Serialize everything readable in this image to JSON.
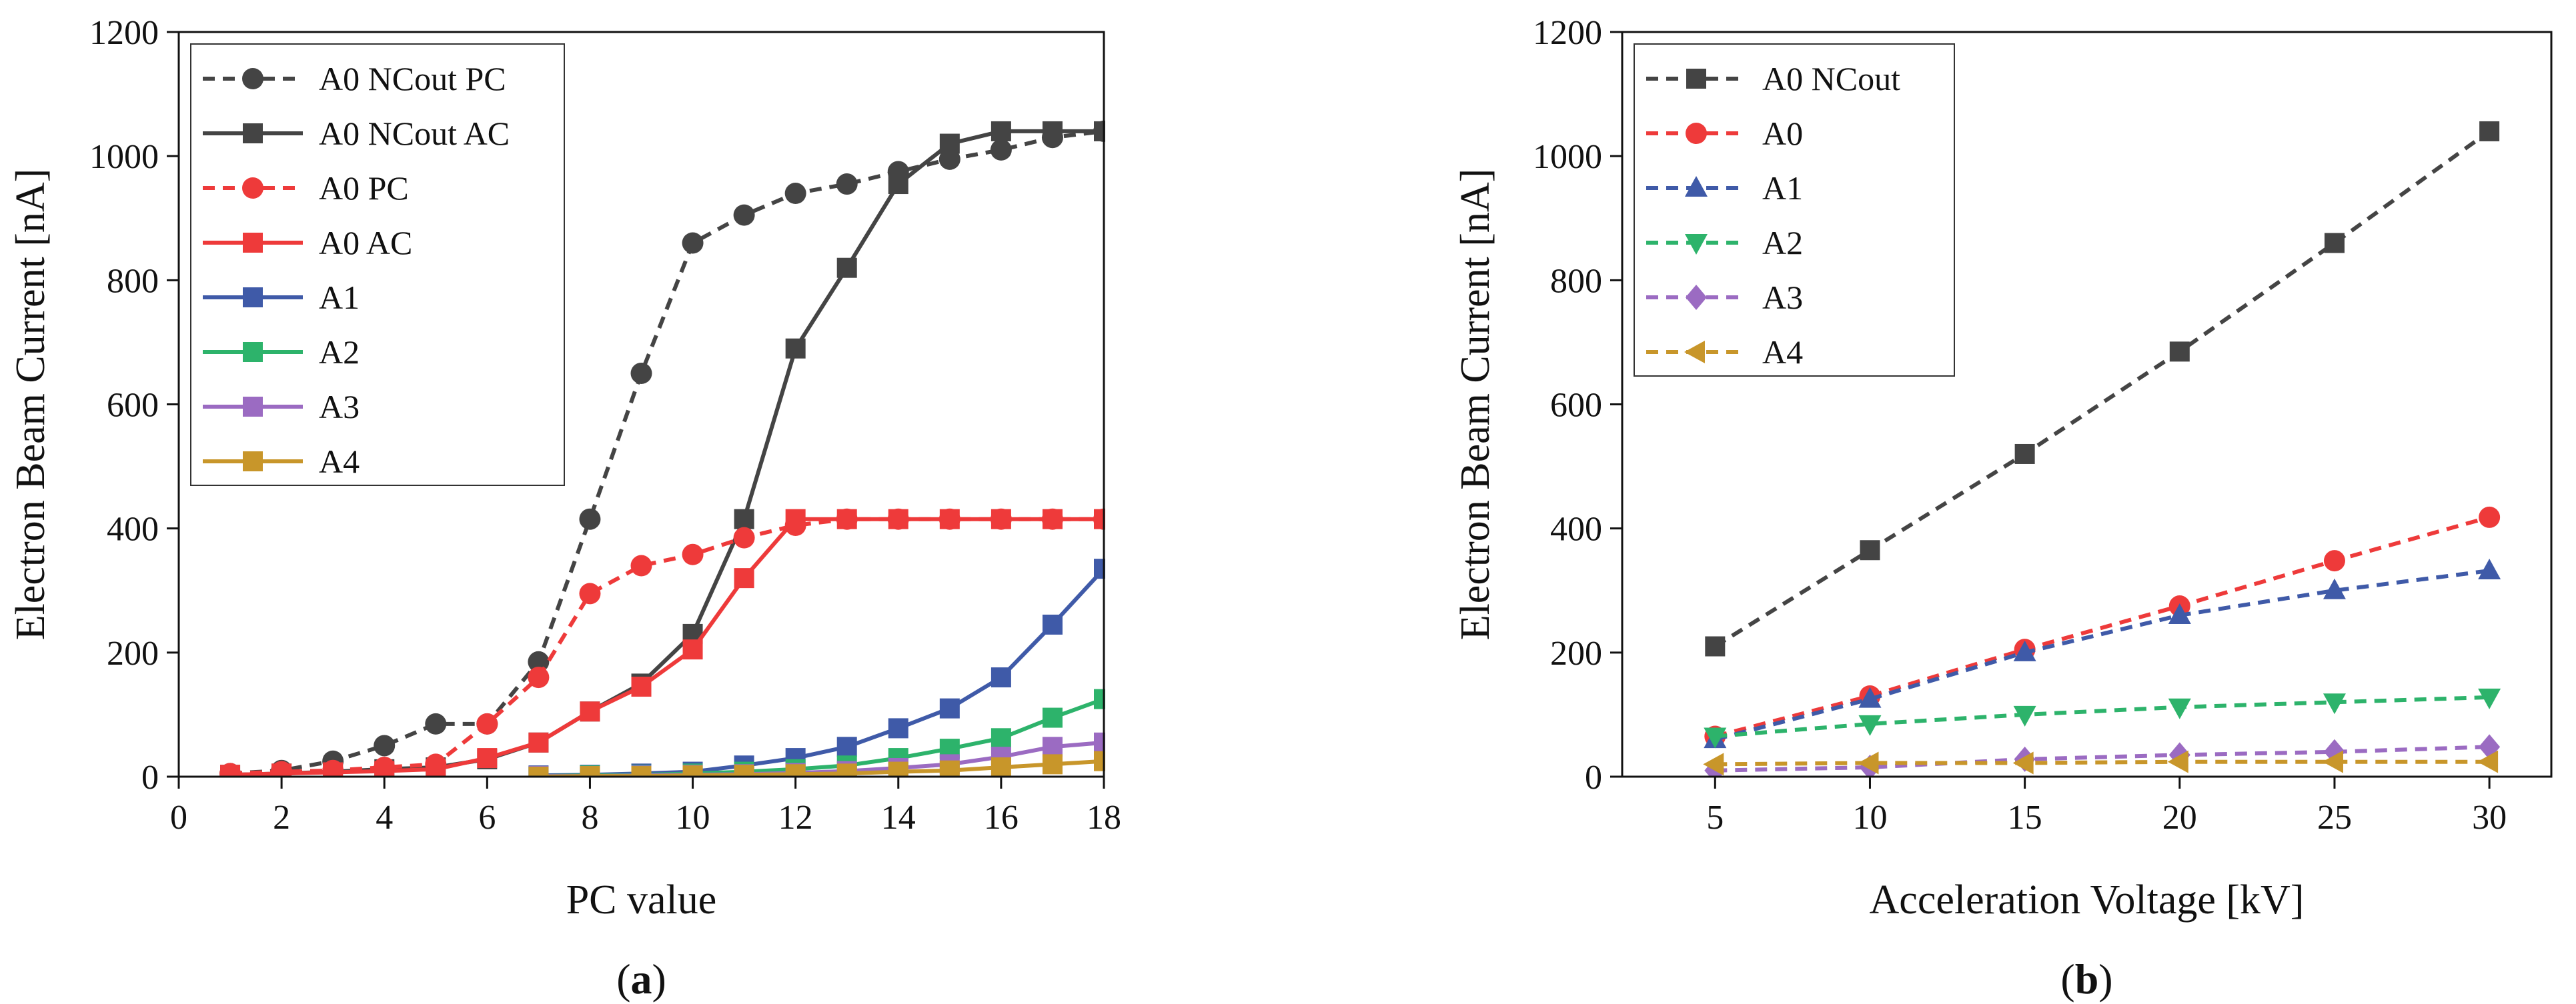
{
  "chart_data": [
    {
      "type": "line",
      "panel_label": "a",
      "xlabel": "PC value",
      "ylabel": "Electron Beam Current [nA]",
      "xlim": [
        0,
        18
      ],
      "ylim": [
        0,
        1200
      ],
      "xticks": [
        0,
        2,
        4,
        6,
        8,
        10,
        12,
        14,
        16,
        18
      ],
      "yticks": [
        0,
        200,
        400,
        600,
        800,
        1000,
        1200
      ],
      "legend_position": "top-left",
      "series": [
        {
          "name": "A0 NCout PC",
          "color": "#444444",
          "dash": "dashed",
          "marker": "circle",
          "x": [
            1,
            2,
            3,
            4,
            5,
            6,
            7,
            8,
            9,
            10,
            11,
            12,
            13,
            14,
            15,
            16,
            17,
            18
          ],
          "y": [
            5,
            10,
            25,
            50,
            85,
            85,
            185,
            415,
            650,
            860,
            905,
            940,
            955,
            975,
            995,
            1010,
            1030,
            1040
          ]
        },
        {
          "name": "A0 NCout AC",
          "color": "#444444",
          "dash": "solid",
          "marker": "square",
          "x": [
            1,
            2,
            3,
            4,
            5,
            6,
            7,
            8,
            9,
            10,
            11,
            12,
            13,
            14,
            15,
            16,
            17,
            18
          ],
          "y": [
            3,
            5,
            8,
            12,
            15,
            28,
            55,
            105,
            150,
            230,
            415,
            690,
            820,
            955,
            1020,
            1040,
            1040,
            1040
          ]
        },
        {
          "name": "A0 PC",
          "color": "#EE3A3A",
          "dash": "dashed",
          "marker": "circle",
          "x": [
            1,
            2,
            3,
            4,
            5,
            6,
            7,
            8,
            9,
            10,
            11,
            12,
            13,
            14,
            15,
            16,
            17,
            18
          ],
          "y": [
            5,
            8,
            10,
            15,
            20,
            85,
            160,
            295,
            340,
            358,
            385,
            405,
            415,
            415,
            415,
            415,
            415,
            415
          ]
        },
        {
          "name": "A0 AC",
          "color": "#EE3A3A",
          "dash": "solid",
          "marker": "square",
          "x": [
            1,
            2,
            3,
            4,
            5,
            6,
            7,
            8,
            9,
            10,
            11,
            12,
            13,
            14,
            15,
            16,
            17,
            18
          ],
          "y": [
            3,
            5,
            7,
            9,
            12,
            30,
            55,
            105,
            145,
            205,
            320,
            415,
            415,
            415,
            415,
            415,
            415,
            415
          ]
        },
        {
          "name": "A1",
          "color": "#3F5AA8",
          "dash": "solid",
          "marker": "square",
          "x": [
            7,
            8,
            9,
            10,
            11,
            12,
            13,
            14,
            15,
            16,
            17,
            18
          ],
          "y": [
            2,
            3,
            5,
            8,
            18,
            30,
            48,
            78,
            110,
            160,
            245,
            335
          ]
        },
        {
          "name": "A2",
          "color": "#2DB36B",
          "dash": "solid",
          "marker": "square",
          "x": [
            7,
            8,
            9,
            10,
            11,
            12,
            13,
            14,
            15,
            16,
            17,
            18
          ],
          "y": [
            1,
            2,
            3,
            5,
            8,
            12,
            18,
            30,
            45,
            62,
            95,
            125
          ]
        },
        {
          "name": "A3",
          "color": "#9B6BC2",
          "dash": "solid",
          "marker": "square",
          "x": [
            7,
            8,
            9,
            10,
            11,
            12,
            13,
            14,
            15,
            16,
            17,
            18
          ],
          "y": [
            1,
            1,
            2,
            3,
            4,
            6,
            9,
            14,
            20,
            32,
            48,
            55
          ]
        },
        {
          "name": "A4",
          "color": "#C8962A",
          "dash": "solid",
          "marker": "square",
          "x": [
            7,
            8,
            9,
            10,
            11,
            12,
            13,
            14,
            15,
            16,
            17,
            18
          ],
          "y": [
            0,
            1,
            1,
            2,
            3,
            4,
            5,
            8,
            10,
            15,
            20,
            25
          ]
        }
      ]
    },
    {
      "type": "line",
      "panel_label": "b",
      "xlabel": "Acceleration Voltage [kV]",
      "ylabel": "Electron Beam Current [nA]",
      "xlim": [
        2,
        32
      ],
      "ylim": [
        0,
        1200
      ],
      "xticks": [
        5,
        10,
        15,
        20,
        25,
        30
      ],
      "yticks": [
        0,
        200,
        400,
        600,
        800,
        1000,
        1200
      ],
      "legend_position": "top-left",
      "series": [
        {
          "name": "A0 NCout",
          "color": "#444444",
          "dash": "dashed",
          "marker": "square",
          "x": [
            5,
            10,
            15,
            20,
            25,
            30
          ],
          "y": [
            210,
            365,
            520,
            685,
            860,
            1040
          ]
        },
        {
          "name": "A0",
          "color": "#EE3A3A",
          "dash": "dashed",
          "marker": "circle",
          "x": [
            5,
            10,
            15,
            20,
            25,
            30
          ],
          "y": [
            65,
            130,
            205,
            275,
            348,
            418
          ]
        },
        {
          "name": "A1",
          "color": "#3F5AA8",
          "dash": "dashed",
          "marker": "triangle-up",
          "x": [
            5,
            10,
            15,
            20,
            25,
            30
          ],
          "y": [
            60,
            125,
            200,
            260,
            300,
            332
          ]
        },
        {
          "name": "A2",
          "color": "#2DB36B",
          "dash": "dashed",
          "marker": "triangle-down",
          "x": [
            5,
            10,
            15,
            20,
            25,
            30
          ],
          "y": [
            65,
            85,
            100,
            112,
            120,
            128
          ]
        },
        {
          "name": "A3",
          "color": "#9B6BC2",
          "dash": "dashed",
          "marker": "diamond",
          "x": [
            5,
            10,
            15,
            20,
            25,
            30
          ],
          "y": [
            10,
            15,
            28,
            35,
            40,
            48
          ]
        },
        {
          "name": "A4",
          "color": "#C8962A",
          "dash": "dashed",
          "marker": "triangle-left",
          "x": [
            5,
            10,
            15,
            20,
            25,
            30
          ],
          "y": [
            20,
            22,
            22,
            24,
            24,
            24
          ]
        }
      ]
    }
  ]
}
